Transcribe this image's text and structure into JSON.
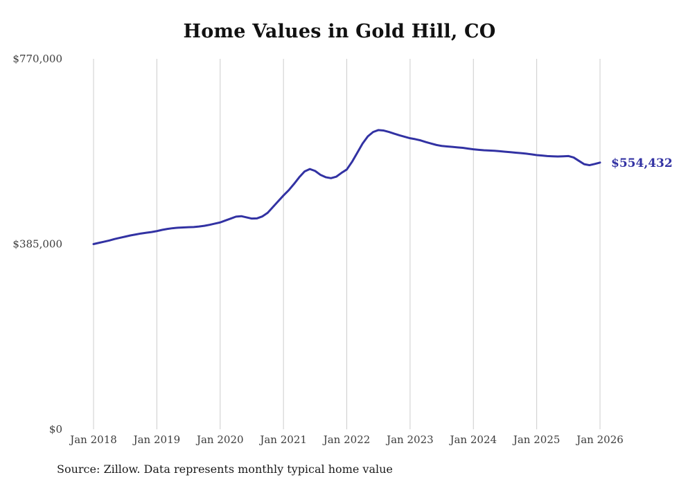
{
  "source_note": "Source: Zillow. Data represents monthly typical home value",
  "chart_data": {
    "type": "line",
    "title": "Home Values in Gold Hill, CO",
    "x_start": "2018-01",
    "x_interval": "month",
    "x_tick_labels": [
      "Jan 2018",
      "Jan 2019",
      "Jan 2020",
      "Jan 2021",
      "Jan 2022",
      "Jan 2023",
      "Jan 2024",
      "Jan 2025",
      "Jan 2026"
    ],
    "y_ticks": [
      {
        "label": "$770,000",
        "value": 770000
      },
      {
        "label": "$385,000",
        "value": 385000
      },
      {
        "label": "$0",
        "value": 0
      }
    ],
    "ylim": [
      0,
      770000
    ],
    "grid": "vertical-only",
    "gridline_color": "#cccccc",
    "line_color": "#3232a3",
    "axis_label_color": "#3c3c3c",
    "end_label": "$554,432",
    "end_value": 554432,
    "series": [
      {
        "name": "Typical home value",
        "values": [
          385000,
          387500,
          390000,
          392500,
          395500,
          398000,
          400500,
          403000,
          405000,
          407000,
          408500,
          410000,
          412000,
          414500,
          416500,
          418000,
          419000,
          419500,
          420000,
          420500,
          421500,
          423000,
          425000,
          427500,
          430000,
          434000,
          438000,
          442000,
          443000,
          440500,
          438000,
          438500,
          442500,
          450000,
          462000,
          474000,
          486000,
          497000,
          510000,
          524000,
          536000,
          541000,
          537000,
          529000,
          524000,
          522000,
          525000,
          533000,
          540000,
          556000,
          575000,
          594000,
          609000,
          618000,
          622000,
          621000,
          618000,
          614500,
          611000,
          608000,
          605000,
          603000,
          600500,
          597000,
          594000,
          591000,
          589000,
          588000,
          587000,
          586000,
          585000,
          583500,
          582000,
          581000,
          580000,
          579500,
          579000,
          578000,
          577000,
          576000,
          575000,
          574000,
          573000,
          571500,
          570000,
          569000,
          568000,
          567500,
          567000,
          567500,
          568000,
          565000,
          558000,
          551000,
          549000,
          551500,
          554432
        ]
      }
    ]
  }
}
